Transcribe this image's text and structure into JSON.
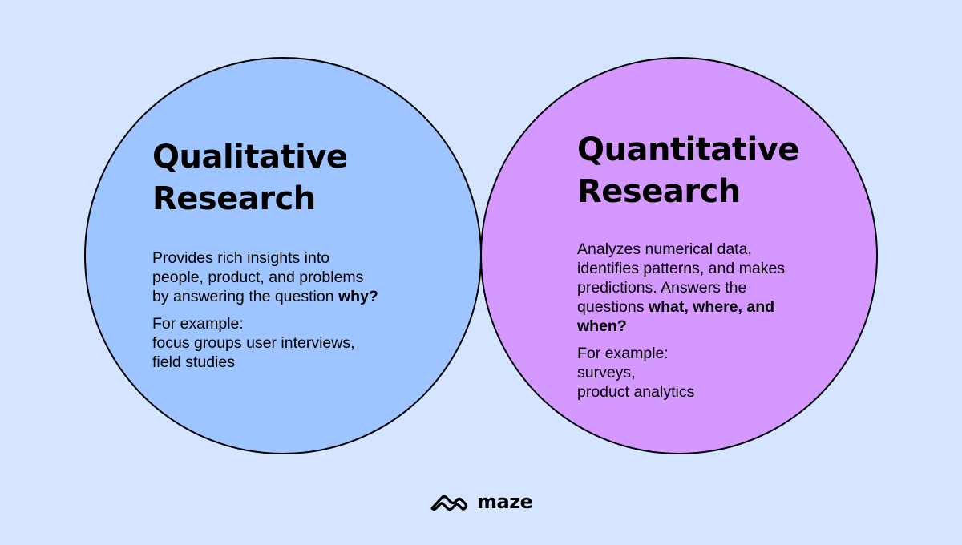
{
  "colors": {
    "background": "#d5e5ff",
    "qualitative_circle": "#9ec5ff",
    "quantitative_circle": "#d498ff",
    "overlap": "#0068ff",
    "outline": "#000000"
  },
  "qualitative": {
    "title_line1": "Qualitative",
    "title_line2": "Research",
    "desc_line1": "Provides rich insights into",
    "desc_line2": "people, product, and problems",
    "desc_line3_pre": "by answering the question ",
    "desc_line3_bold": "why?",
    "example_label": "For example:",
    "example_line1": "focus groups user interviews,",
    "example_line2": "field studies"
  },
  "quantitative": {
    "title_line1": "Quantitative",
    "title_line2": "Research",
    "desc_line1": "Analyzes numerical data,",
    "desc_line2": "identifies patterns, and makes",
    "desc_line3": "predictions. Answers the",
    "desc_line4_pre": "questions ",
    "desc_line4_bold": "what, where, and",
    "desc_line5_bold": "when?",
    "example_label": "For example:",
    "example_line1": "surveys,",
    "example_line2": "product analytics"
  },
  "brand": {
    "icon": "maze-logo-icon",
    "name": "maze"
  }
}
